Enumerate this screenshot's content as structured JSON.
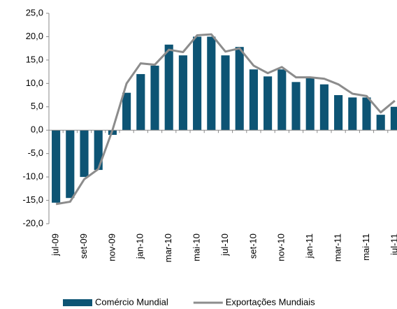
{
  "chart_data": {
    "type": "bar",
    "categories": [
      "jul-09",
      null,
      "set-09",
      null,
      "nov-09",
      null,
      "jan-10",
      null,
      "mar-10",
      null,
      "mai-10",
      null,
      "jul-10",
      null,
      "set-10",
      null,
      "nov-10",
      null,
      "jan-11",
      null,
      "mar-11",
      null,
      "mai-11",
      null,
      "jul-11"
    ],
    "series": [
      {
        "name": "Comércio Mundial",
        "color": "#0d5474",
        "values": [
          -15.5,
          -14.5,
          -10,
          -8.5,
          -1,
          8,
          12,
          13.8,
          18.3,
          16,
          20,
          20,
          16,
          17.8,
          13,
          11.5,
          13,
          10.3,
          11.3,
          9.8,
          7.5,
          7,
          7,
          3.3,
          5
        ]
      },
      {
        "name": "Exportações Mundiais",
        "type": "line",
        "color": "#8c8c8c",
        "values": [
          -15.8,
          -15.3,
          -10.5,
          -8.3,
          0,
          10,
          14.3,
          14,
          17.2,
          16.7,
          20.3,
          20.5,
          16.8,
          17.5,
          13.8,
          12.2,
          13.5,
          11.3,
          11.3,
          11,
          9.8,
          7.8,
          7.3,
          3.8,
          6.3
        ]
      }
    ],
    "ylim": [
      -20,
      25
    ],
    "yticks": [
      {
        "value": -20,
        "label": "-20,0"
      },
      {
        "value": -15,
        "label": "-15,0"
      },
      {
        "value": -10,
        "label": "-10,0"
      },
      {
        "value": -5,
        "label": "-5,0"
      },
      {
        "value": 0,
        "label": "0,0"
      },
      {
        "value": 5,
        "label": "5,0"
      },
      {
        "value": 10,
        "label": "10,0"
      },
      {
        "value": 15,
        "label": "15,0"
      },
      {
        "value": 20,
        "label": "20,0"
      },
      {
        "value": 25,
        "label": "25,0"
      }
    ],
    "grid": false
  }
}
